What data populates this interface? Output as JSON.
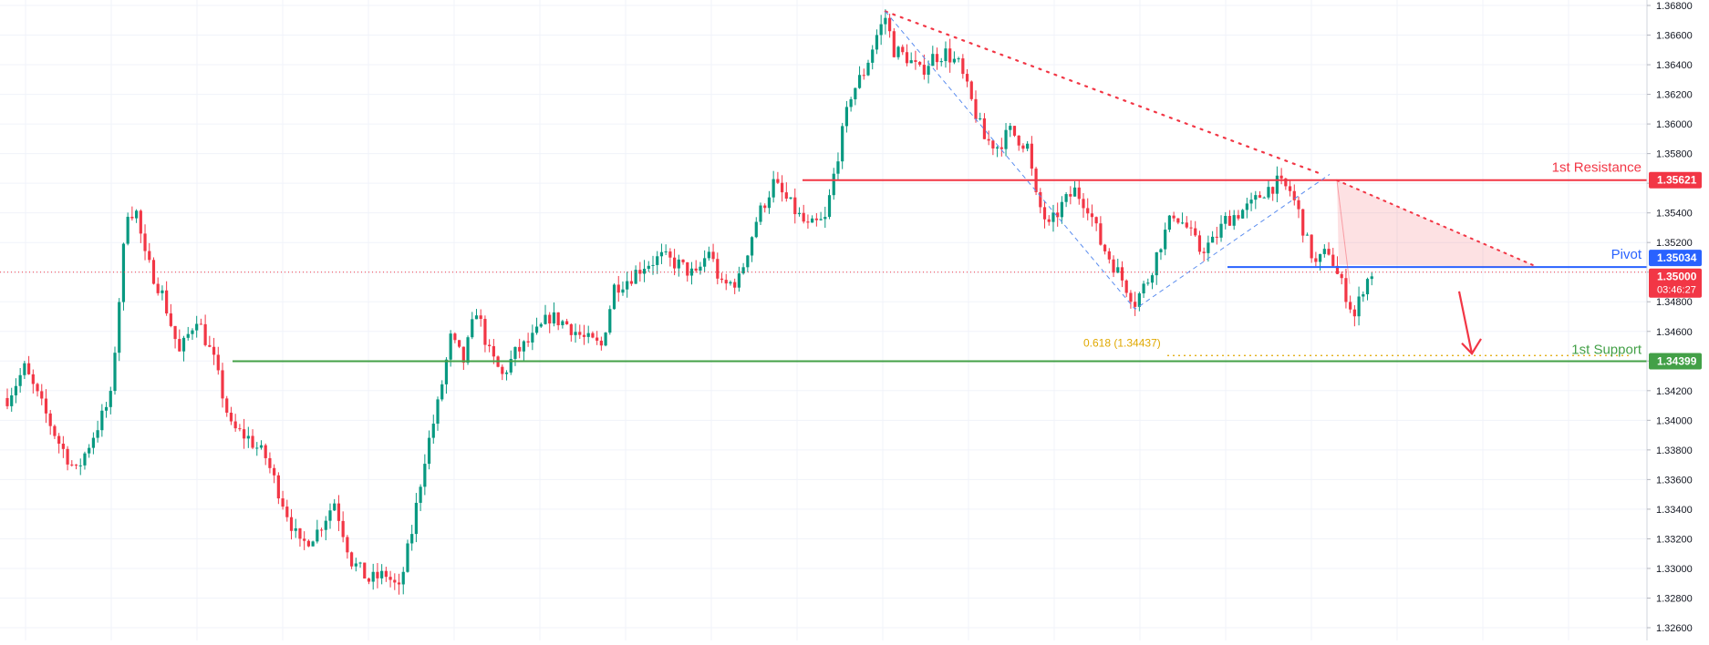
{
  "chart_data": {
    "type": "candlestick",
    "title": "",
    "ylim": [
      1.326,
      1.368
    ],
    "y_ticks": [
      "1.32600",
      "1.32800",
      "1.33000",
      "1.33200",
      "1.33400",
      "1.33600",
      "1.33800",
      "1.34000",
      "1.34200",
      "1.34400",
      "1.34600",
      "1.34800",
      "1.35000",
      "1.35200",
      "1.35400",
      "1.35600",
      "1.35800",
      "1.36000",
      "1.36200",
      "1.36400",
      "1.36600",
      "1.36800"
    ],
    "grid": true,
    "colors": {
      "up": "#089981",
      "down": "#f23645",
      "resistance": "#f23645",
      "pivot": "#2962ff",
      "support": "#43a047",
      "fib": "#e0a800"
    },
    "anchors": [
      [
        0,
        1.3415
      ],
      [
        4,
        1.3435
      ],
      [
        8,
        1.341
      ],
      [
        12,
        1.3385
      ],
      [
        16,
        1.3365
      ],
      [
        20,
        1.339
      ],
      [
        24,
        1.3415
      ],
      [
        27,
        1.3515
      ],
      [
        28,
        1.3542
      ],
      [
        30,
        1.354
      ],
      [
        32,
        1.351
      ],
      [
        36,
        1.3485
      ],
      [
        40,
        1.3445
      ],
      [
        44,
        1.347
      ],
      [
        48,
        1.344
      ],
      [
        52,
        1.3395
      ],
      [
        56,
        1.3388
      ],
      [
        60,
        1.3375
      ],
      [
        64,
        1.3345
      ],
      [
        68,
        1.3315
      ],
      [
        72,
        1.3325
      ],
      [
        76,
        1.3345
      ],
      [
        80,
        1.3305
      ],
      [
        84,
        1.3292
      ],
      [
        88,
        1.3296
      ],
      [
        91,
        1.3285
      ],
      [
        94,
        1.3325
      ],
      [
        97,
        1.3375
      ],
      [
        100,
        1.341
      ],
      [
        103,
        1.3455
      ],
      [
        106,
        1.344
      ],
      [
        109,
        1.3475
      ],
      [
        112,
        1.3445
      ],
      [
        115,
        1.343
      ],
      [
        118,
        1.3445
      ],
      [
        122,
        1.3455
      ],
      [
        126,
        1.347
      ],
      [
        130,
        1.3465
      ],
      [
        134,
        1.3455
      ],
      [
        138,
        1.345
      ],
      [
        141,
        1.349
      ],
      [
        144,
        1.3495
      ],
      [
        148,
        1.3505
      ],
      [
        152,
        1.351
      ],
      [
        156,
        1.3505
      ],
      [
        160,
        1.3497
      ],
      [
        163,
        1.3515
      ],
      [
        166,
        1.349
      ],
      [
        170,
        1.3495
      ],
      [
        174,
        1.3535
      ],
      [
        178,
        1.356
      ],
      [
        182,
        1.3545
      ],
      [
        186,
        1.353
      ],
      [
        190,
        1.3535
      ],
      [
        193,
        1.358
      ],
      [
        196,
        1.362
      ],
      [
        199,
        1.3635
      ],
      [
        202,
        1.366
      ],
      [
        204,
        1.3672
      ],
      [
        206,
        1.365
      ],
      [
        209,
        1.3645
      ],
      [
        212,
        1.3635
      ],
      [
        215,
        1.3645
      ],
      [
        218,
        1.3648
      ],
      [
        221,
        1.364
      ],
      [
        224,
        1.3615
      ],
      [
        227,
        1.359
      ],
      [
        230,
        1.3585
      ],
      [
        233,
        1.3595
      ],
      [
        237,
        1.3585
      ],
      [
        239,
        1.355
      ],
      [
        242,
        1.353
      ],
      [
        245,
        1.3545
      ],
      [
        248,
        1.3555
      ],
      [
        251,
        1.3545
      ],
      [
        254,
        1.352
      ],
      [
        257,
        1.3505
      ],
      [
        260,
        1.349
      ],
      [
        262,
        1.348
      ],
      [
        265,
        1.3495
      ],
      [
        268,
        1.352
      ],
      [
        271,
        1.354
      ],
      [
        274,
        1.353
      ],
      [
        277,
        1.3515
      ],
      [
        280,
        1.352
      ],
      [
        283,
        1.3535
      ],
      [
        286,
        1.354
      ],
      [
        289,
        1.3545
      ],
      [
        292,
        1.3555
      ],
      [
        295,
        1.356
      ],
      [
        298,
        1.3555
      ],
      [
        300,
        1.354
      ],
      [
        302,
        1.352
      ],
      [
        304,
        1.3505
      ],
      [
        307,
        1.3515
      ],
      [
        309,
        1.3498
      ],
      [
        311,
        1.3485
      ],
      [
        313,
        1.347
      ],
      [
        315,
        1.349
      ],
      [
        317,
        1.35
      ]
    ],
    "levels": {
      "resistance": {
        "label": "1st Resistance",
        "value": 1.35621,
        "tag": "1.35621"
      },
      "pivot": {
        "label": "Pivot",
        "value": 1.35034,
        "tag": "1.35034"
      },
      "support": {
        "label": "1st Support",
        "value": 1.34399,
        "tag": "1.34399"
      },
      "fib": {
        "label": "0.618 (1.34437)",
        "value": 1.34437
      }
    },
    "last_price": {
      "value": 1.35,
      "tag": "1.35000",
      "countdown": "03:46:27"
    }
  }
}
